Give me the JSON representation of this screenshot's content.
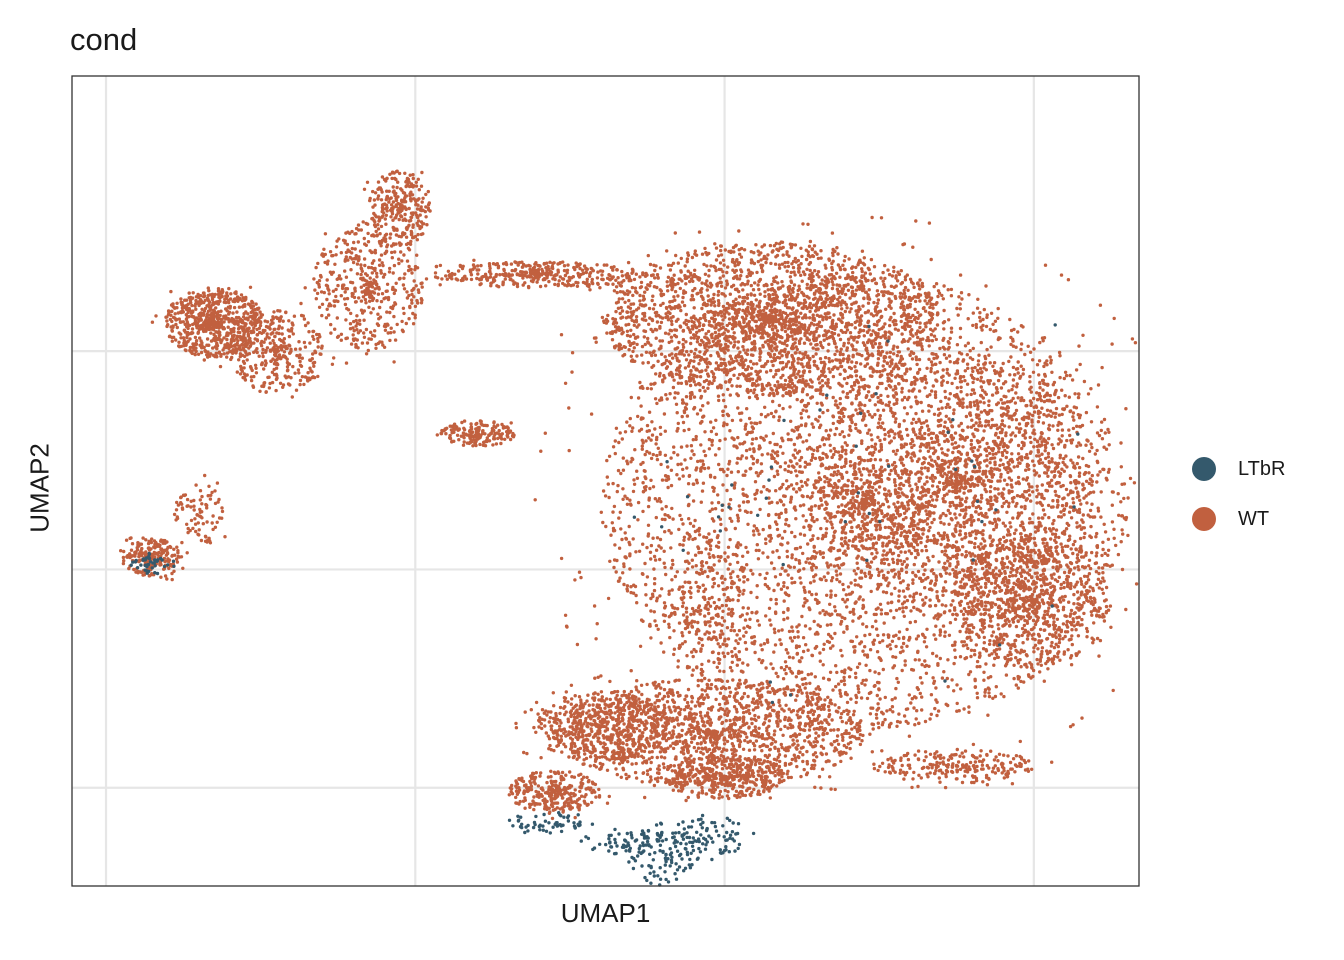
{
  "chart_data": {
    "type": "scatter",
    "title": "cond",
    "xlabel": "UMAP1",
    "ylabel": "UMAP2",
    "grid": true,
    "tick_labels_shown": false,
    "legend_position": "right",
    "xlim": [
      -1.1,
      33.4
    ],
    "ylim": [
      -14.5,
      22.6
    ],
    "x_gridlines": [
      0,
      10,
      20,
      30
    ],
    "y_gridlines": [
      -10,
      0,
      10
    ],
    "point_count_per_series": {
      "WT": 14000,
      "LTbR": 380
    },
    "series": [
      {
        "name": "WT",
        "color": "#C1603F",
        "regions": [
          {
            "cx": 24.5,
            "cy": 3.0,
            "rx": 8.5,
            "ry": 10.5,
            "w": 6
          },
          {
            "cx": 21.5,
            "cy": 11.5,
            "rx": 5.5,
            "ry": 3.5,
            "w": 3
          },
          {
            "cx": 27.5,
            "cy": 4.0,
            "rx": 4.5,
            "ry": 6.0,
            "w": 2
          },
          {
            "cx": 30.0,
            "cy": -1.5,
            "rx": 2.5,
            "ry": 3.0,
            "w": 1
          },
          {
            "cx": 19.5,
            "cy": -7.5,
            "rx": 5.0,
            "ry": 2.5,
            "w": 2
          },
          {
            "cx": 16.0,
            "cy": -7.2,
            "rx": 2.2,
            "ry": 1.6,
            "w": 0.6
          },
          {
            "cx": 14.5,
            "cy": -10.2,
            "rx": 1.5,
            "ry": 1.0,
            "w": 0.4
          },
          {
            "cx": 20.0,
            "cy": -9.5,
            "rx": 2.0,
            "ry": 1.0,
            "w": 0.5
          },
          {
            "cx": 27.5,
            "cy": -9.0,
            "rx": 2.5,
            "ry": 0.8,
            "w": 0.3
          },
          {
            "cx": 3.5,
            "cy": 11.3,
            "rx": 1.6,
            "ry": 1.6,
            "w": 0.9
          },
          {
            "cx": 5.5,
            "cy": 10.0,
            "rx": 1.5,
            "ry": 2.0,
            "w": 0.5
          },
          {
            "cx": 8.5,
            "cy": 13.0,
            "rx": 1.8,
            "ry": 3.0,
            "w": 0.6
          },
          {
            "cx": 9.5,
            "cy": 16.5,
            "rx": 1.0,
            "ry": 1.8,
            "w": 0.4
          },
          {
            "cx": 14.0,
            "cy": 13.5,
            "rx": 3.5,
            "ry": 0.6,
            "w": 0.5
          },
          {
            "cx": 12.0,
            "cy": 6.2,
            "rx": 1.2,
            "ry": 0.6,
            "w": 0.25
          },
          {
            "cx": 1.5,
            "cy": 0.5,
            "rx": 1.0,
            "ry": 0.9,
            "w": 0.3
          },
          {
            "cx": 3.0,
            "cy": 2.5,
            "rx": 0.8,
            "ry": 1.5,
            "w": 0.12
          },
          {
            "cx": 19.5,
            "cy": -1.5,
            "rx": 1.0,
            "ry": 3.0,
            "w": 0.2
          }
        ]
      },
      {
        "name": "LTbR",
        "color": "#34596C",
        "regions": [
          {
            "cx": 18.0,
            "cy": -13.0,
            "rx": 1.2,
            "ry": 1.5,
            "w": 1.5
          },
          {
            "cx": 16.5,
            "cy": -12.5,
            "rx": 1.2,
            "ry": 0.6,
            "w": 0.6
          },
          {
            "cx": 19.5,
            "cy": -12.2,
            "rx": 1.2,
            "ry": 1.0,
            "w": 1
          },
          {
            "cx": 14.5,
            "cy": -11.6,
            "rx": 1.5,
            "ry": 0.5,
            "w": 0.7
          },
          {
            "cx": 1.5,
            "cy": 0.3,
            "rx": 0.8,
            "ry": 0.5,
            "w": 0.5
          },
          {
            "cx": 24.5,
            "cy": 3.0,
            "rx": 8.0,
            "ry": 9.5,
            "w": 0.6
          }
        ]
      }
    ]
  }
}
